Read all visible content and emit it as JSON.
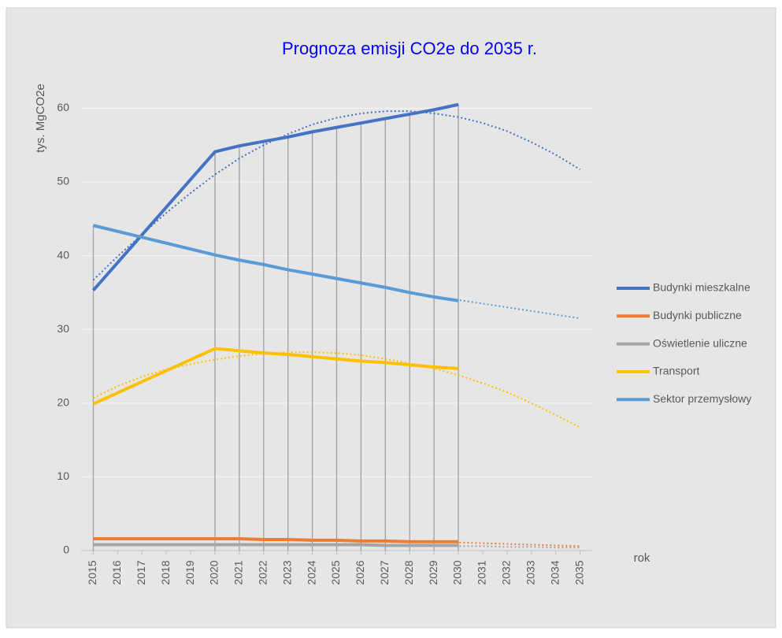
{
  "chart_data": {
    "type": "line",
    "title": "Prognoza emisji CO2e do 2035 r.",
    "y_label": "tys. MgCO2e",
    "x_label": "rok",
    "x": [
      2015,
      2020,
      2021,
      2022,
      2023,
      2024,
      2025,
      2026,
      2027,
      2028,
      2029,
      2030
    ],
    "xlim": [
      2014.5,
      2035.5
    ],
    "xticks": [
      2015,
      2016,
      2017,
      2018,
      2019,
      2020,
      2021,
      2022,
      2023,
      2024,
      2025,
      2026,
      2027,
      2028,
      2029,
      2030,
      2031,
      2032,
      2033,
      2034,
      2035
    ],
    "ylim": [
      0,
      64
    ],
    "yticks": [
      0,
      10,
      20,
      30,
      40,
      50,
      60
    ],
    "grid": true,
    "legend": "right",
    "series": [
      {
        "name": "Budynki mieszkalne",
        "color": "#4472c4",
        "values": [
          35.3,
          54.1,
          54.9,
          55.5,
          56.1,
          56.8,
          57.4,
          58.0,
          58.6,
          59.2,
          59.8,
          60.5
        ],
        "trend": [
          36.7,
          39.9,
          42.9,
          45.8,
          48.5,
          51.0,
          53.2,
          55.0,
          56.5,
          57.8,
          58.7,
          59.3,
          59.6,
          59.6,
          59.3,
          58.8,
          58.0,
          56.9,
          55.4,
          53.7,
          51.7
        ]
      },
      {
        "name": "Budynki publiczne",
        "color": "#ed7d31",
        "values": [
          1.6,
          1.6,
          1.6,
          1.5,
          1.5,
          1.4,
          1.4,
          1.3,
          1.3,
          1.2,
          1.2,
          1.2
        ],
        "trend": [
          1.7,
          1.7,
          1.7,
          1.6,
          1.6,
          1.6,
          1.5,
          1.5,
          1.4,
          1.4,
          1.3,
          1.3,
          1.2,
          1.2,
          1.1,
          1.1,
          1.0,
          0.9,
          0.8,
          0.7,
          0.6
        ]
      },
      {
        "name": "Oświetlenie uliczne",
        "color": "#a5a5a5",
        "values": [
          0.8,
          0.8,
          0.8,
          0.8,
          0.8,
          0.8,
          0.8,
          0.8,
          0.7,
          0.7,
          0.7,
          0.7
        ],
        "trend": [
          0.8,
          0.8,
          0.8,
          0.8,
          0.8,
          0.8,
          0.8,
          0.8,
          0.8,
          0.8,
          0.7,
          0.7,
          0.7,
          0.7,
          0.6,
          0.6,
          0.6,
          0.5,
          0.5,
          0.4,
          0.4
        ]
      },
      {
        "name": "Transport",
        "color": "#ffc000",
        "values": [
          19.9,
          27.4,
          27.1,
          26.8,
          26.6,
          26.3,
          26.0,
          25.7,
          25.5,
          25.2,
          24.9,
          24.7
        ],
        "trend": [
          20.7,
          22.3,
          23.6,
          24.6,
          25.3,
          25.9,
          26.4,
          26.7,
          26.9,
          26.9,
          26.8,
          26.5,
          26.0,
          25.4,
          24.7,
          23.8,
          22.7,
          21.5,
          20.0,
          18.4,
          16.7
        ]
      },
      {
        "name": "Sektor przemysłowy",
        "color": "#5b9bd5",
        "values": [
          44.1,
          40.1,
          39.4,
          38.8,
          38.1,
          37.5,
          36.9,
          36.3,
          35.7,
          35.0,
          34.4,
          33.9
        ],
        "trend": [
          44.0,
          43.2,
          42.4,
          41.6,
          40.8,
          40.1,
          39.4,
          38.7,
          38.1,
          37.5,
          36.9,
          36.3,
          35.7,
          35.1,
          34.5,
          34.0,
          33.5,
          33.0,
          32.5,
          32.0,
          31.5
        ]
      }
    ]
  }
}
